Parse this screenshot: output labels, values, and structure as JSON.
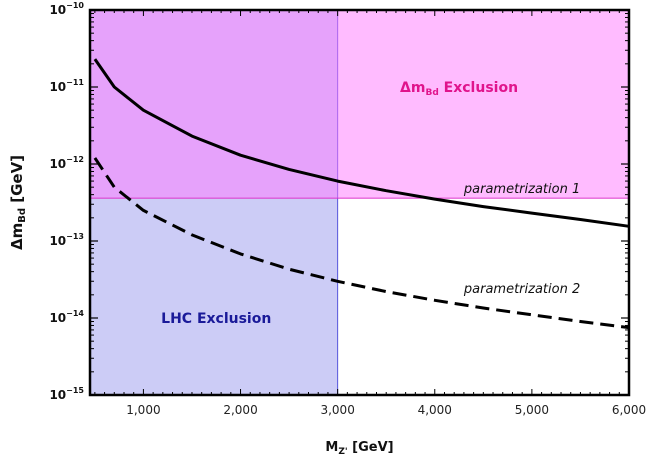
{
  "chart_data": {
    "type": "line",
    "xlabel_main": "M",
    "xlabel_sub": "Z'",
    "xlabel_unit": " [GeV]",
    "ylabel_main": "Δm",
    "ylabel_sub": "Bd",
    "ylabel_unit": " [GeV]",
    "xlim": [
      450,
      6000
    ],
    "ylim_log10": [
      -15,
      -10
    ],
    "y_scale": "log",
    "x_ticks": [
      {
        "value": 1000,
        "label": "1,000"
      },
      {
        "value": 2000,
        "label": "2,000"
      },
      {
        "value": 3000,
        "label": "3,000"
      },
      {
        "value": 4000,
        "label": "4,000"
      },
      {
        "value": 5000,
        "label": "5,000"
      },
      {
        "value": 6000,
        "label": "6,000"
      }
    ],
    "y_ticks": [
      {
        "exp": -10,
        "base": "10",
        "sup": "−10"
      },
      {
        "exp": -11,
        "base": "10",
        "sup": "−11"
      },
      {
        "exp": -12,
        "base": "10",
        "sup": "−12"
      },
      {
        "exp": -13,
        "base": "10",
        "sup": "−13"
      },
      {
        "exp": -14,
        "base": "10",
        "sup": "−14"
      },
      {
        "exp": -15,
        "base": "10",
        "sup": "−15"
      }
    ],
    "regions": [
      {
        "label_main": "LHC Exclusion",
        "label_sub": "",
        "label_rest": "",
        "x_range": [
          450,
          3000
        ],
        "y_range": [
          1e-15,
          1e-10
        ],
        "fill": "#9999ee",
        "stroke": "#5555dd",
        "text_color": "#1a1a99",
        "label_at": {
          "x": 1750,
          "y": 1e-14
        }
      },
      {
        "label_main": "Δm",
        "label_sub": "Bd",
        "label_rest": " Exclusion",
        "x_range": [
          450,
          6000
        ],
        "y_range": [
          3.6e-13,
          1e-10
        ],
        "fill": "#ff77ff",
        "stroke": "#dd33cc",
        "text_color": "#e0148c",
        "label_at": {
          "x": 4250,
          "y": 1e-11
        }
      }
    ],
    "series": [
      {
        "name": "parametrization 1",
        "dash": "solid",
        "label_at": {
          "x": 4300,
          "y": 4.2e-13
        },
        "x": [
          500,
          700,
          1000,
          1500,
          2000,
          2500,
          3000,
          3500,
          4000,
          4500,
          5000,
          5500,
          6000
        ],
        "y": [
          2.3e-11,
          1e-11,
          5e-12,
          2.3e-12,
          1.3e-12,
          8.5e-13,
          6e-13,
          4.5e-13,
          3.5e-13,
          2.8e-13,
          2.3e-13,
          1.9e-13,
          1.55e-13
        ]
      },
      {
        "name": "parametrization 2",
        "dash": "dashed",
        "label_at": {
          "x": 4300,
          "y": 2.1e-14
        },
        "x": [
          500,
          700,
          1000,
          1500,
          2000,
          2500,
          3000,
          3500,
          4000,
          4500,
          5000,
          5500,
          6000
        ],
        "y": [
          1.2e-12,
          5e-13,
          2.5e-13,
          1.2e-13,
          6.8e-14,
          4.3e-14,
          3e-14,
          2.2e-14,
          1.7e-14,
          1.35e-14,
          1.1e-14,
          9e-15,
          7.5e-15
        ]
      }
    ]
  }
}
